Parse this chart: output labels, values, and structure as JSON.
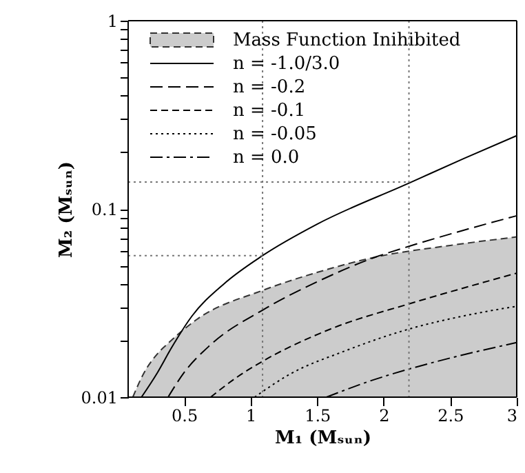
{
  "chart_data": {
    "type": "line",
    "xlabel": "M₁ (Mₛᵤₙ)",
    "ylabel": "M₂ (Mₛᵤₙ)",
    "xlim": [
      0.08,
      3
    ],
    "ylim": [
      0.01,
      1
    ],
    "log": "y",
    "grid": false,
    "legend": "top left",
    "marker": "none",
    "xticks": [
      0.5,
      1,
      1.5,
      2,
      2.5,
      3
    ],
    "yticks": [
      0.01,
      {
        "value": 0.02,
        "label": null
      },
      {
        "value": 0.03,
        "label": null
      },
      {
        "value": 0.04,
        "label": null
      },
      {
        "value": 0.05,
        "label": null
      },
      {
        "value": 0.06,
        "label": null
      },
      {
        "value": 0.07,
        "label": null
      },
      {
        "value": 0.08,
        "label": null
      },
      {
        "value": 0.09,
        "label": null
      },
      0.1,
      {
        "value": 0.2,
        "label": null
      },
      {
        "value": 0.3,
        "label": null
      },
      {
        "value": 0.4,
        "label": null
      },
      {
        "value": 0.5,
        "label": null
      },
      {
        "value": 0.6,
        "label": null
      },
      {
        "value": 0.7,
        "label": null
      },
      {
        "value": 0.8,
        "label": null
      },
      {
        "value": 0.9,
        "label": null
      },
      1
    ],
    "series": [
      {
        "name": "Mass Function Inihibited",
        "type": "area",
        "color": "#cccccc",
        "line_style": "dashed",
        "x": [
          0.115,
          0.2,
          0.3,
          0.376,
          0.6,
          1.09,
          1.5,
          1.94,
          2.5,
          3
        ],
        "values": [
          0.01,
          0.0135,
          0.017,
          0.0192,
          0.026,
          0.0369,
          0.046,
          0.0555,
          0.064,
          0.071
        ]
      },
      {
        "name": "n = -1.0/3.0",
        "color": "#000000",
        "line_style": "solid",
        "x": [
          0.18,
          0.3,
          0.4,
          0.56,
          0.8,
          1.09,
          1.5,
          2.19,
          2.6,
          3
        ],
        "values": [
          0.01,
          0.0135,
          0.018,
          0.027,
          0.04,
          0.0565,
          0.083,
          0.137,
          0.185,
          0.245
        ]
      },
      {
        "name": "n = -0.2",
        "color": "#000000",
        "line_style": "longdash",
        "x": [
          0.38,
          0.5,
          0.7,
          1.09,
          1.5,
          1.94,
          2.19,
          2.6,
          3
        ],
        "values": [
          0.01,
          0.0135,
          0.019,
          0.029,
          0.041,
          0.0555,
          0.0633,
          0.077,
          0.092
        ]
      },
      {
        "name": "n = -0.1",
        "color": "#000000",
        "line_style": "dashed",
        "x": [
          0.7,
          0.9,
          1.09,
          1.6,
          2.19,
          2.6,
          3
        ],
        "values": [
          0.01,
          0.0128,
          0.0155,
          0.023,
          0.0313,
          0.038,
          0.0456
        ]
      },
      {
        "name": "n = -0.05",
        "color": "#000000",
        "line_style": "dotted",
        "x": [
          1.03,
          1.3,
          1.7,
          2.19,
          2.6,
          3
        ],
        "values": [
          0.01,
          0.0133,
          0.0175,
          0.023,
          0.027,
          0.0304
        ]
      },
      {
        "name": "n =  0.0",
        "color": "#000000",
        "line_style": "dashdot",
        "x": [
          1.57,
          1.9,
          2.19,
          2.6,
          3
        ],
        "values": [
          0.01,
          0.0122,
          0.0141,
          0.0168,
          0.0195
        ]
      },
      {
        "type": "line",
        "color": "#777777",
        "line_style": "dotted",
        "x": [
          0.08,
          2.19
        ],
        "values": [
          0.139,
          0.139
        ]
      },
      {
        "type": "line",
        "color": "#777777",
        "line_style": "dotted",
        "x": [
          0.08,
          1.09
        ],
        "values": [
          0.0565,
          0.0565
        ]
      }
    ],
    "ref_lines": [
      {
        "axis": "x",
        "value": 1.09,
        "color": "#777777",
        "line_style": "dotted"
      },
      {
        "axis": "x",
        "value": 2.19,
        "color": "#777777",
        "line_style": "dotted"
      }
    ]
  }
}
